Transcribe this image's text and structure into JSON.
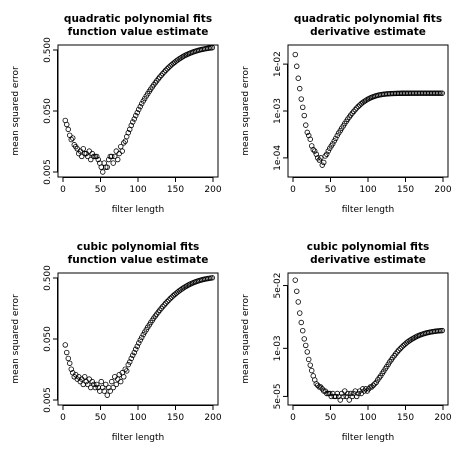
{
  "chart_data": [
    {
      "type": "scatter",
      "title": [
        "quadratic polynomial fits",
        "function value estimate"
      ],
      "xlabel": "filter length",
      "ylabel": "mean squared error",
      "xlim": [
        0,
        200
      ],
      "ylim": [
        0.005,
        0.5
      ],
      "y_scale": "log",
      "x_ticks": [
        "0",
        "50",
        "100",
        "150",
        "200"
      ],
      "y_ticks": [
        "0.005",
        "0.050",
        "0.500"
      ],
      "x_tick_values": [
        0,
        50,
        100,
        150,
        200
      ],
      "y_tick_values": [
        0.005,
        0.05,
        0.5
      ],
      "grid": false,
      "marker": "open circle",
      "x": [
        3,
        5,
        7,
        9,
        11,
        13,
        15,
        17,
        19,
        21,
        23,
        25,
        27,
        29,
        31,
        33,
        35,
        37,
        39,
        41,
        43,
        45,
        47,
        49,
        51,
        53,
        55,
        57,
        59,
        61,
        63,
        65,
        67,
        69,
        71,
        73,
        75,
        77,
        79,
        81,
        83,
        85,
        87,
        89,
        91,
        93,
        95,
        97,
        99,
        101,
        103,
        105,
        107,
        109,
        111,
        113,
        115,
        117,
        119,
        121,
        123,
        125,
        127,
        129,
        131,
        133,
        135,
        137,
        139,
        141,
        143,
        145,
        147,
        149,
        151,
        153,
        155,
        157,
        159,
        161,
        163,
        165,
        167,
        169,
        171,
        173,
        175,
        177,
        179,
        181,
        183,
        185,
        187,
        189,
        191,
        193,
        195,
        197,
        199
      ],
      "y": [
        0.035,
        0.03,
        0.025,
        0.02,
        0.017,
        0.018,
        0.014,
        0.013,
        0.012,
        0.01,
        0.011,
        0.009,
        0.012,
        0.01,
        0.01,
        0.009,
        0.011,
        0.008,
        0.01,
        0.009,
        0.009,
        0.009,
        0.008,
        0.007,
        0.006,
        0.005,
        0.007,
        0.006,
        0.006,
        0.008,
        0.009,
        0.009,
        0.007,
        0.009,
        0.011,
        0.008,
        0.01,
        0.013,
        0.011,
        0.015,
        0.016,
        0.019,
        0.022,
        0.025,
        0.029,
        0.033,
        0.037,
        0.042,
        0.047,
        0.053,
        0.059,
        0.066,
        0.073,
        0.08,
        0.088,
        0.096,
        0.105,
        0.114,
        0.124,
        0.134,
        0.145,
        0.156,
        0.168,
        0.18,
        0.192,
        0.205,
        0.218,
        0.232,
        0.246,
        0.26,
        0.274,
        0.288,
        0.302,
        0.316,
        0.33,
        0.344,
        0.358,
        0.371,
        0.384,
        0.397,
        0.409,
        0.42,
        0.431,
        0.442,
        0.452,
        0.462,
        0.471,
        0.48,
        0.488,
        0.496,
        0.503,
        0.51,
        0.516,
        0.522,
        0.527,
        0.532,
        0.537,
        0.541,
        0.545
      ]
    },
    {
      "type": "scatter",
      "title": [
        "quadratic polynomial fits",
        "derivative estimate"
      ],
      "xlabel": "filter length",
      "ylabel": "mean squared error",
      "xlim": [
        0,
        200
      ],
      "ylim": [
        5e-05,
        0.02
      ],
      "y_scale": "log",
      "x_ticks": [
        "0",
        "50",
        "100",
        "150",
        "200"
      ],
      "y_ticks": [
        "1e-04",
        "1e-03",
        "1e-02"
      ],
      "x_tick_values": [
        0,
        50,
        100,
        150,
        200
      ],
      "y_tick_values": [
        0.0001,
        0.001,
        0.01
      ],
      "grid": false,
      "marker": "open circle",
      "x": [
        3,
        5,
        7,
        9,
        11,
        13,
        15,
        17,
        19,
        21,
        23,
        25,
        27,
        29,
        31,
        33,
        35,
        37,
        39,
        41,
        43,
        45,
        47,
        49,
        51,
        53,
        55,
        57,
        59,
        61,
        63,
        65,
        67,
        69,
        71,
        73,
        75,
        77,
        79,
        81,
        83,
        85,
        87,
        89,
        91,
        93,
        95,
        97,
        99,
        101,
        103,
        105,
        107,
        109,
        111,
        113,
        115,
        117,
        119,
        121,
        123,
        125,
        127,
        129,
        131,
        133,
        135,
        137,
        139,
        141,
        143,
        145,
        147,
        149,
        151,
        153,
        155,
        157,
        159,
        161,
        163,
        165,
        167,
        169,
        171,
        173,
        175,
        177,
        179,
        181,
        183,
        185,
        187,
        189,
        191,
        193,
        195,
        197,
        199
      ],
      "y": [
        0.016,
        0.009,
        0.005,
        0.003,
        0.0018,
        0.0012,
        0.0008,
        0.0005,
        0.00035,
        0.0003,
        0.00025,
        0.00018,
        0.00015,
        0.00014,
        0.00012,
        0.0001,
        9e-05,
        0.0001,
        7e-05,
        8e-05,
        0.00011,
        0.00012,
        0.00014,
        0.00016,
        0.00018,
        0.0002,
        0.00023,
        0.00026,
        0.0003,
        0.00034,
        0.00038,
        0.00043,
        0.00048,
        0.00054,
        0.0006,
        0.00067,
        0.00074,
        0.00082,
        0.0009,
        0.00098,
        0.00107,
        0.00116,
        0.00125,
        0.00134,
        0.00143,
        0.00152,
        0.0016,
        0.00168,
        0.00176,
        0.00183,
        0.0019,
        0.00196,
        0.00202,
        0.00207,
        0.00212,
        0.00216,
        0.0022,
        0.00223,
        0.00226,
        0.00228,
        0.0023,
        0.00232,
        0.00233,
        0.00234,
        0.00235,
        0.00236,
        0.00237,
        0.00237,
        0.00238,
        0.00238,
        0.00238,
        0.00239,
        0.00239,
        0.00239,
        0.00239,
        0.00239,
        0.00239,
        0.0024,
        0.0024,
        0.0024,
        0.0024,
        0.0024,
        0.0024,
        0.0024,
        0.0024,
        0.0024,
        0.0024,
        0.0024,
        0.0024,
        0.0024,
        0.0024,
        0.0024,
        0.0024,
        0.0024,
        0.0024,
        0.0024,
        0.0024,
        0.0024,
        0.0024
      ]
    },
    {
      "type": "scatter",
      "title": [
        "cubic polynomial fits",
        "function value estimate"
      ],
      "xlabel": "filter length",
      "ylabel": "mean squared error",
      "xlim": [
        0,
        200
      ],
      "ylim": [
        0.005,
        0.5
      ],
      "y_scale": "log",
      "x_ticks": [
        "0",
        "50",
        "100",
        "150",
        "200"
      ],
      "y_ticks": [
        "0.005",
        "0.050",
        "0.500"
      ],
      "x_tick_values": [
        0,
        50,
        100,
        150,
        200
      ],
      "y_tick_values": [
        0.005,
        0.05,
        0.5
      ],
      "grid": false,
      "marker": "open circle",
      "x": [
        3,
        5,
        7,
        9,
        11,
        13,
        15,
        17,
        19,
        21,
        23,
        25,
        27,
        29,
        31,
        33,
        35,
        37,
        39,
        41,
        43,
        45,
        47,
        49,
        51,
        53,
        55,
        57,
        59,
        61,
        63,
        65,
        67,
        69,
        71,
        73,
        75,
        77,
        79,
        81,
        83,
        85,
        87,
        89,
        91,
        93,
        95,
        97,
        99,
        101,
        103,
        105,
        107,
        109,
        111,
        113,
        115,
        117,
        119,
        121,
        123,
        125,
        127,
        129,
        131,
        133,
        135,
        137,
        139,
        141,
        143,
        145,
        147,
        149,
        151,
        153,
        155,
        157,
        159,
        161,
        163,
        165,
        167,
        169,
        171,
        173,
        175,
        177,
        179,
        181,
        183,
        185,
        187,
        189,
        191,
        193,
        195,
        197,
        199
      ],
      "y": [
        0.04,
        0.03,
        0.024,
        0.02,
        0.016,
        0.014,
        0.012,
        0.013,
        0.011,
        0.012,
        0.01,
        0.011,
        0.009,
        0.012,
        0.01,
        0.009,
        0.011,
        0.008,
        0.01,
        0.009,
        0.008,
        0.009,
        0.008,
        0.007,
        0.01,
        0.008,
        0.007,
        0.009,
        0.006,
        0.008,
        0.007,
        0.01,
        0.008,
        0.012,
        0.009,
        0.011,
        0.013,
        0.01,
        0.014,
        0.012,
        0.016,
        0.015,
        0.019,
        0.021,
        0.024,
        0.027,
        0.03,
        0.034,
        0.038,
        0.043,
        0.048,
        0.053,
        0.059,
        0.065,
        0.071,
        0.078,
        0.085,
        0.093,
        0.101,
        0.11,
        0.119,
        0.128,
        0.138,
        0.148,
        0.159,
        0.17,
        0.181,
        0.193,
        0.205,
        0.217,
        0.23,
        0.243,
        0.256,
        0.269,
        0.282,
        0.295,
        0.308,
        0.321,
        0.334,
        0.347,
        0.359,
        0.371,
        0.383,
        0.394,
        0.405,
        0.415,
        0.425,
        0.434,
        0.443,
        0.451,
        0.459,
        0.466,
        0.473,
        0.479,
        0.485,
        0.49,
        0.495,
        0.499,
        0.503
      ]
    },
    {
      "type": "scatter",
      "title": [
        "cubic polynomial fits",
        "derivative estimate"
      ],
      "xlabel": "filter length",
      "ylabel": "mean squared error",
      "xlim": [
        0,
        200
      ],
      "ylim": [
        4e-05,
        0.08
      ],
      "y_scale": "log",
      "x_ticks": [
        "0",
        "50",
        "100",
        "150",
        "200"
      ],
      "y_ticks": [
        "5e-05",
        "1e-03",
        "5e-02"
      ],
      "x_tick_values": [
        0,
        50,
        100,
        150,
        200
      ],
      "y_tick_values": [
        5e-05,
        0.001,
        0.05
      ],
      "grid": false,
      "marker": "open circle",
      "x": [
        3,
        5,
        7,
        9,
        11,
        13,
        15,
        17,
        19,
        21,
        23,
        25,
        27,
        29,
        31,
        33,
        35,
        37,
        39,
        41,
        43,
        45,
        47,
        49,
        51,
        53,
        55,
        57,
        59,
        61,
        63,
        65,
        67,
        69,
        71,
        73,
        75,
        77,
        79,
        81,
        83,
        85,
        87,
        89,
        91,
        93,
        95,
        97,
        99,
        101,
        103,
        105,
        107,
        109,
        111,
        113,
        115,
        117,
        119,
        121,
        123,
        125,
        127,
        129,
        131,
        133,
        135,
        137,
        139,
        141,
        143,
        145,
        147,
        149,
        151,
        153,
        155,
        157,
        159,
        161,
        163,
        165,
        167,
        169,
        171,
        173,
        175,
        177,
        179,
        181,
        183,
        185,
        187,
        189,
        191,
        193,
        195,
        197,
        199
      ],
      "y": [
        0.07,
        0.035,
        0.018,
        0.009,
        0.005,
        0.003,
        0.0018,
        0.0012,
        0.0008,
        0.0005,
        0.00035,
        0.00025,
        0.00018,
        0.00014,
        0.00011,
        0.0001,
        9e-05,
        9e-05,
        8e-05,
        7e-05,
        7e-05,
        6e-05,
        6e-05,
        6e-05,
        5e-05,
        6e-05,
        5e-05,
        5e-05,
        6e-05,
        5e-05,
        4e-05,
        6e-05,
        5e-05,
        7e-05,
        5e-05,
        6e-05,
        4e-05,
        6e-05,
        5e-05,
        6e-05,
        7e-05,
        5e-05,
        6e-05,
        7e-05,
        6e-05,
        8e-05,
        7e-05,
        8e-05,
        7e-05,
        8e-05,
        9e-05,
        9e-05,
        0.0001,
        0.00011,
        0.00012,
        0.00014,
        0.00016,
        0.00018,
        0.00021,
        0.00024,
        0.00028,
        0.00032,
        0.00037,
        0.00043,
        0.00049,
        0.00056,
        0.00063,
        0.00071,
        0.0008,
        0.00089,
        0.00098,
        0.00108,
        0.00118,
        0.00128,
        0.00139,
        0.0015,
        0.0016,
        0.0017,
        0.0018,
        0.0019,
        0.002,
        0.0021,
        0.0022,
        0.00228,
        0.00236,
        0.00244,
        0.00251,
        0.00258,
        0.00264,
        0.0027,
        0.00275,
        0.0028,
        0.00284,
        0.00288,
        0.00292,
        0.00295,
        0.00298,
        0.003,
        0.00302
      ]
    }
  ]
}
